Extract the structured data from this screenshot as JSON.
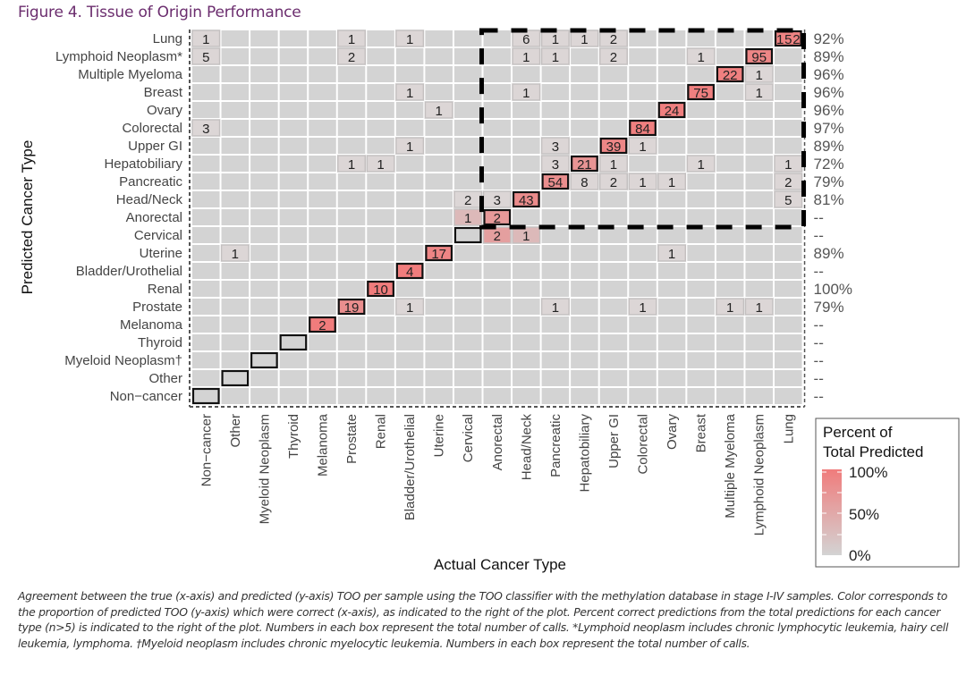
{
  "figure": {
    "title": "Figure 4. Tissue of Origin Performance",
    "caption": "Agreement between the true (x-axis) and predicted (y-axis) TOO per sample using the TOO classifier with the methylation database in stage I-IV samples. Color corresponds to the proportion of predicted TOO (y-axis) which were correct (x-axis), as indicated to the right of the plot. Percent correct predictions from the total predictions for each cancer type (n>5) is indicated to the right of the plot. Numbers in each box represent the total number of calls. *Lymphoid neoplasm includes chronic lymphocytic leukemia, hairy cell leukemia, lymphoma. †Myeloid neoplasm includes chronic myelocytic leukemia. Numbers in each box represent the total number of calls."
  },
  "colors": {
    "title": "#6b2d6e",
    "cell_empty": "#d3d3d3",
    "scale_low": "#d3d3d3",
    "scale_high": "#f07c7c",
    "grid_line": "#ffffff"
  },
  "chart_data": {
    "type": "heatmap",
    "title": "Figure 4. Tissue of Origin Performance",
    "xlabel": "Actual Cancer Type",
    "ylabel": "Predicted Cancer Type",
    "x_categories": [
      "Non−cancer",
      "Other",
      "Myeloid Neoplasm",
      "Thyroid",
      "Melanoma",
      "Prostate",
      "Renal",
      "Bladder/Urothelial",
      "Uterine",
      "Cervical",
      "Anorectal",
      "Head/Neck",
      "Pancreatic",
      "Hepatobiliary",
      "Upper GI",
      "Colorectal",
      "Ovary",
      "Breast",
      "Multiple Myeloma",
      "Lymphoid Neoplasm",
      "Lung"
    ],
    "y_categories": [
      "Lung",
      "Lymphoid Neoplasm*",
      "Multiple Myeloma",
      "Breast",
      "Ovary",
      "Colorectal",
      "Upper GI",
      "Hepatobiliary",
      "Pancreatic",
      "Head/Neck",
      "Anorectal",
      "Cervical",
      "Uterine",
      "Bladder/Urothelial",
      "Renal",
      "Prostate",
      "Melanoma",
      "Thyroid",
      "Myeloid Neoplasm†",
      "Other",
      "Non−cancer"
    ],
    "row_percent_correct": [
      "92%",
      "89%",
      "96%",
      "96%",
      "96%",
      "97%",
      "89%",
      "72%",
      "79%",
      "81%",
      "--",
      "--",
      "89%",
      "--",
      "100%",
      "79%",
      "--",
      "--",
      "--",
      "--",
      "--"
    ],
    "cells": [
      {
        "pred": "Lung",
        "actual": "Non−cancer",
        "count": 1
      },
      {
        "pred": "Lung",
        "actual": "Prostate",
        "count": 1
      },
      {
        "pred": "Lung",
        "actual": "Bladder/Urothelial",
        "count": 1
      },
      {
        "pred": "Lung",
        "actual": "Head/Neck",
        "count": 6
      },
      {
        "pred": "Lung",
        "actual": "Pancreatic",
        "count": 1
      },
      {
        "pred": "Lung",
        "actual": "Hepatobiliary",
        "count": 1
      },
      {
        "pred": "Lung",
        "actual": "Upper GI",
        "count": 2
      },
      {
        "pred": "Lung",
        "actual": "Lung",
        "count": 152
      },
      {
        "pred": "Lymphoid Neoplasm*",
        "actual": "Non−cancer",
        "count": 5
      },
      {
        "pred": "Lymphoid Neoplasm*",
        "actual": "Prostate",
        "count": 2
      },
      {
        "pred": "Lymphoid Neoplasm*",
        "actual": "Head/Neck",
        "count": 1
      },
      {
        "pred": "Lymphoid Neoplasm*",
        "actual": "Pancreatic",
        "count": 1
      },
      {
        "pred": "Lymphoid Neoplasm*",
        "actual": "Upper GI",
        "count": 2
      },
      {
        "pred": "Lymphoid Neoplasm*",
        "actual": "Breast",
        "count": 1
      },
      {
        "pred": "Lymphoid Neoplasm*",
        "actual": "Lymphoid Neoplasm",
        "count": 95
      },
      {
        "pred": "Multiple Myeloma",
        "actual": "Multiple Myeloma",
        "count": 22
      },
      {
        "pred": "Multiple Myeloma",
        "actual": "Lymphoid Neoplasm",
        "count": 1
      },
      {
        "pred": "Breast",
        "actual": "Bladder/Urothelial",
        "count": 1
      },
      {
        "pred": "Breast",
        "actual": "Head/Neck",
        "count": 1
      },
      {
        "pred": "Breast",
        "actual": "Breast",
        "count": 75
      },
      {
        "pred": "Breast",
        "actual": "Lymphoid Neoplasm",
        "count": 1
      },
      {
        "pred": "Ovary",
        "actual": "Uterine",
        "count": 1
      },
      {
        "pred": "Ovary",
        "actual": "Ovary",
        "count": 24
      },
      {
        "pred": "Colorectal",
        "actual": "Non−cancer",
        "count": 3
      },
      {
        "pred": "Colorectal",
        "actual": "Colorectal",
        "count": 84
      },
      {
        "pred": "Upper GI",
        "actual": "Bladder/Urothelial",
        "count": 1
      },
      {
        "pred": "Upper GI",
        "actual": "Pancreatic",
        "count": 3
      },
      {
        "pred": "Upper GI",
        "actual": "Upper GI",
        "count": 39
      },
      {
        "pred": "Upper GI",
        "actual": "Colorectal",
        "count": 1
      },
      {
        "pred": "Hepatobiliary",
        "actual": "Prostate",
        "count": 1
      },
      {
        "pred": "Hepatobiliary",
        "actual": "Renal",
        "count": 1
      },
      {
        "pred": "Hepatobiliary",
        "actual": "Pancreatic",
        "count": 3
      },
      {
        "pred": "Hepatobiliary",
        "actual": "Hepatobiliary",
        "count": 21
      },
      {
        "pred": "Hepatobiliary",
        "actual": "Upper GI",
        "count": 1
      },
      {
        "pred": "Hepatobiliary",
        "actual": "Breast",
        "count": 1
      },
      {
        "pred": "Hepatobiliary",
        "actual": "Lung",
        "count": 1
      },
      {
        "pred": "Pancreatic",
        "actual": "Pancreatic",
        "count": 54
      },
      {
        "pred": "Pancreatic",
        "actual": "Hepatobiliary",
        "count": 8
      },
      {
        "pred": "Pancreatic",
        "actual": "Upper GI",
        "count": 2
      },
      {
        "pred": "Pancreatic",
        "actual": "Colorectal",
        "count": 1
      },
      {
        "pred": "Pancreatic",
        "actual": "Ovary",
        "count": 1
      },
      {
        "pred": "Pancreatic",
        "actual": "Lung",
        "count": 2
      },
      {
        "pred": "Head/Neck",
        "actual": "Cervical",
        "count": 2
      },
      {
        "pred": "Head/Neck",
        "actual": "Anorectal",
        "count": 3
      },
      {
        "pred": "Head/Neck",
        "actual": "Head/Neck",
        "count": 43
      },
      {
        "pred": "Head/Neck",
        "actual": "Lung",
        "count": 5
      },
      {
        "pred": "Anorectal",
        "actual": "Cervical",
        "count": 1
      },
      {
        "pred": "Anorectal",
        "actual": "Anorectal",
        "count": 2
      },
      {
        "pred": "Cervical",
        "actual": "Anorectal",
        "count": 2
      },
      {
        "pred": "Cervical",
        "actual": "Head/Neck",
        "count": 1
      },
      {
        "pred": "Uterine",
        "actual": "Other",
        "count": 1
      },
      {
        "pred": "Uterine",
        "actual": "Uterine",
        "count": 17
      },
      {
        "pred": "Uterine",
        "actual": "Ovary",
        "count": 1
      },
      {
        "pred": "Bladder/Urothelial",
        "actual": "Bladder/Urothelial",
        "count": 4
      },
      {
        "pred": "Renal",
        "actual": "Renal",
        "count": 10
      },
      {
        "pred": "Prostate",
        "actual": "Prostate",
        "count": 19
      },
      {
        "pred": "Prostate",
        "actual": "Bladder/Urothelial",
        "count": 1
      },
      {
        "pred": "Prostate",
        "actual": "Pancreatic",
        "count": 1
      },
      {
        "pred": "Prostate",
        "actual": "Colorectal",
        "count": 1
      },
      {
        "pred": "Prostate",
        "actual": "Multiple Myeloma",
        "count": 1
      },
      {
        "pred": "Prostate",
        "actual": "Lymphoid Neoplasm",
        "count": 1
      },
      {
        "pred": "Melanoma",
        "actual": "Melanoma",
        "count": 2
      }
    ],
    "legend": {
      "title_line1": "Percent of",
      "title_line2": "Total Predicted",
      "ticks": [
        "100%",
        "50%",
        "0%"
      ],
      "placement": "bottom-right"
    },
    "highlight_box": {
      "style": "dashed",
      "x_from": "Anorectal",
      "x_to": "Lung",
      "y_from": "Lung",
      "y_to": "Anorectal"
    },
    "grid": true
  }
}
